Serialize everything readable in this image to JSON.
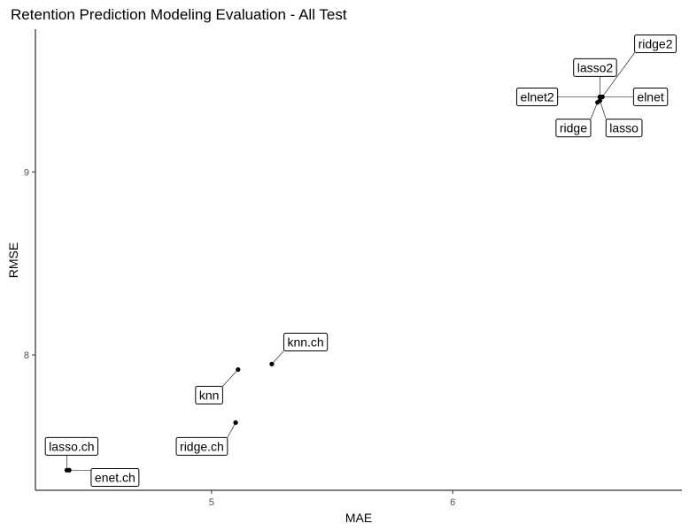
{
  "chart_data": {
    "type": "scatter",
    "title": "Retention Prediction Modeling Evaluation - All Test",
    "xlabel": "MAE",
    "ylabel": "RMSE",
    "xlim": [
      4.27,
      6.95
    ],
    "ylim": [
      7.26,
      9.78
    ],
    "xticks": [
      5,
      6
    ],
    "yticks": [
      8,
      9
    ],
    "grid": false,
    "points": [
      {
        "label": "ridge2",
        "x": 6.62,
        "y": 9.41,
        "lx": 6.84,
        "ly": 9.7
      },
      {
        "label": "lasso2",
        "x": 6.61,
        "y": 9.41,
        "lx": 6.59,
        "ly": 9.57
      },
      {
        "label": "elnet2",
        "x": 6.61,
        "y": 9.41,
        "lx": 6.35,
        "ly": 9.41
      },
      {
        "label": "elnet",
        "x": 6.62,
        "y": 9.41,
        "lx": 6.82,
        "ly": 9.41
      },
      {
        "label": "ridge",
        "x": 6.6,
        "y": 9.38,
        "lx": 6.5,
        "ly": 9.24
      },
      {
        "label": "lasso",
        "x": 6.61,
        "y": 9.39,
        "lx": 6.71,
        "ly": 9.24
      },
      {
        "label": "knn.ch",
        "x": 5.25,
        "y": 7.95,
        "lx": 5.39,
        "ly": 8.07
      },
      {
        "label": "knn",
        "x": 5.11,
        "y": 7.92,
        "lx": 4.99,
        "ly": 7.78
      },
      {
        "label": "ridge.ch",
        "x": 5.1,
        "y": 7.63,
        "lx": 4.96,
        "ly": 7.5
      },
      {
        "label": "lasso.ch",
        "x": 4.4,
        "y": 7.37,
        "lx": 4.42,
        "ly": 7.5
      },
      {
        "label": "enet.ch",
        "x": 4.41,
        "y": 7.37,
        "lx": 4.6,
        "ly": 7.33
      }
    ]
  }
}
